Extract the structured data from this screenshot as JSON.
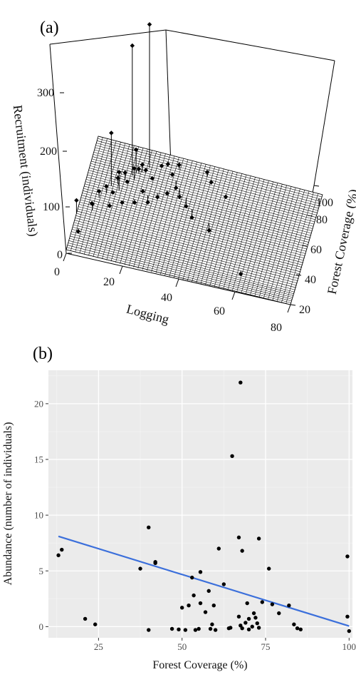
{
  "figure": {
    "panel_a_label": "(a)",
    "panel_b_label": "(b)"
  },
  "chart_data": [
    {
      "type": "scatter",
      "variant": "3d-scatter-with-regression-plane",
      "title": "",
      "xlabel": "Logging",
      "ylabel": "Forest Coverage (%)",
      "zlabel": "Recruitment (individuals)",
      "x_ticks": [
        "0",
        "20",
        "40",
        "60",
        "80"
      ],
      "y_ticks": [
        "20",
        "40",
        "60",
        "80",
        "100"
      ],
      "z_ticks": [
        "0",
        "100",
        "200",
        "300"
      ],
      "xlim": [
        0,
        80
      ],
      "ylim": [
        10,
        110
      ],
      "zlim": [
        0,
        360
      ],
      "plane": {
        "style": "wireframe",
        "gridlines": 50
      },
      "points": [
        {
          "logging": 0,
          "coverage": 42,
          "recruitment": 55
        },
        {
          "logging": 2,
          "coverage": 30,
          "recruitment": 12
        },
        {
          "logging": 4,
          "coverage": 55,
          "recruitment": 28
        },
        {
          "logging": 5,
          "coverage": 48,
          "recruitment": 42
        },
        {
          "logging": 6,
          "coverage": 60,
          "recruitment": 48
        },
        {
          "logging": 8,
          "coverage": 65,
          "recruitment": 52
        },
        {
          "logging": 9,
          "coverage": 72,
          "recruitment": 160
        },
        {
          "logging": 10,
          "coverage": 68,
          "recruitment": 35
        },
        {
          "logging": 11,
          "coverage": 75,
          "recruitment": 55
        },
        {
          "logging": 12,
          "coverage": 70,
          "recruitment": 80
        },
        {
          "logging": 13,
          "coverage": 80,
          "recruitment": 60
        },
        {
          "logging": 14,
          "coverage": 78,
          "recruitment": 45
        },
        {
          "logging": 15,
          "coverage": 85,
          "recruitment": 340
        },
        {
          "logging": 16,
          "coverage": 82,
          "recruitment": 70
        },
        {
          "logging": 17,
          "coverage": 88,
          "recruitment": 58
        },
        {
          "logging": 18,
          "coverage": 90,
          "recruitment": 65
        },
        {
          "logging": 19,
          "coverage": 92,
          "recruitment": 50
        },
        {
          "logging": 20,
          "coverage": 95,
          "recruitment": 375
        },
        {
          "logging": 20,
          "coverage": 74,
          "recruitment": 40
        },
        {
          "logging": 22,
          "coverage": 86,
          "recruitment": 48
        },
        {
          "logging": 24,
          "coverage": 98,
          "recruitment": 55
        },
        {
          "logging": 26,
          "coverage": 100,
          "recruitment": 58
        },
        {
          "logging": 28,
          "coverage": 96,
          "recruitment": 45
        },
        {
          "logging": 30,
          "coverage": 90,
          "recruitment": 30
        },
        {
          "logging": 32,
          "coverage": 84,
          "recruitment": 25
        },
        {
          "logging": 35,
          "coverage": 78,
          "recruitment": 20
        },
        {
          "logging": 38,
          "coverage": 70,
          "recruitment": 15
        },
        {
          "logging": 40,
          "coverage": 100,
          "recruitment": 60
        },
        {
          "logging": 42,
          "coverage": 95,
          "recruitment": 50
        },
        {
          "logging": 45,
          "coverage": 62,
          "recruitment": 12
        },
        {
          "logging": 48,
          "coverage": 88,
          "recruitment": 40
        },
        {
          "logging": 10,
          "coverage": 58,
          "recruitment": 25
        },
        {
          "logging": 14,
          "coverage": 62,
          "recruitment": 30
        },
        {
          "logging": 18,
          "coverage": 66,
          "recruitment": 28
        },
        {
          "logging": 22,
          "coverage": 72,
          "recruitment": 22
        },
        {
          "logging": 25,
          "coverage": 76,
          "recruitment": 30
        },
        {
          "logging": 28,
          "coverage": 80,
          "recruitment": 35
        },
        {
          "logging": 60,
          "coverage": 30,
          "recruitment": 0
        },
        {
          "logging": 16,
          "coverage": 88,
          "recruitment": 100
        },
        {
          "logging": 30,
          "coverage": 100,
          "recruitment": 62
        }
      ]
    },
    {
      "type": "scatter",
      "title": "",
      "xlabel": "Forest Coverage (%)",
      "ylabel": "Abundance (number of individuals)",
      "xlim": [
        10,
        101
      ],
      "ylim": [
        -1,
        23
      ],
      "x_ticks": [
        25,
        50,
        75,
        100
      ],
      "y_ticks": [
        0,
        5,
        10,
        15,
        20
      ],
      "grid": true,
      "background": "#ebebeb",
      "point_color": "#000000",
      "trend_color": "#3b6fdb",
      "trend_line": {
        "x": [
          13,
          100
        ],
        "y": [
          8.1,
          0.05
        ]
      },
      "points": [
        {
          "x": 13,
          "y": 6.4
        },
        {
          "x": 14,
          "y": 6.9
        },
        {
          "x": 21,
          "y": 0.7
        },
        {
          "x": 24,
          "y": 0.2
        },
        {
          "x": 37.5,
          "y": 5.2
        },
        {
          "x": 40,
          "y": 8.9
        },
        {
          "x": 40,
          "y": -0.3
        },
        {
          "x": 42,
          "y": 5.8
        },
        {
          "x": 42,
          "y": 5.7
        },
        {
          "x": 47,
          "y": -0.2
        },
        {
          "x": 49,
          "y": -0.25
        },
        {
          "x": 50,
          "y": 1.7
        },
        {
          "x": 51,
          "y": -0.3
        },
        {
          "x": 52,
          "y": 1.9
        },
        {
          "x": 53,
          "y": 4.4
        },
        {
          "x": 53.5,
          "y": 2.8
        },
        {
          "x": 54,
          "y": -0.3
        },
        {
          "x": 55,
          "y": -0.2
        },
        {
          "x": 55.5,
          "y": 4.9
        },
        {
          "x": 55.5,
          "y": 2.1
        },
        {
          "x": 57,
          "y": 1.3
        },
        {
          "x": 58,
          "y": 3.2
        },
        {
          "x": 58.5,
          "y": -0.2
        },
        {
          "x": 59,
          "y": 0.2
        },
        {
          "x": 59.5,
          "y": 1.9
        },
        {
          "x": 60,
          "y": -0.3
        },
        {
          "x": 61,
          "y": 7.0
        },
        {
          "x": 62.5,
          "y": 3.8
        },
        {
          "x": 64,
          "y": -0.15
        },
        {
          "x": 64.5,
          "y": -0.1
        },
        {
          "x": 65,
          "y": 15.3
        },
        {
          "x": 67,
          "y": 8.0
        },
        {
          "x": 67.5,
          "y": 21.9
        },
        {
          "x": 67,
          "y": 0.9
        },
        {
          "x": 67.5,
          "y": 0.1
        },
        {
          "x": 68,
          "y": 6.8
        },
        {
          "x": 68,
          "y": -0.15
        },
        {
          "x": 69,
          "y": 0.35
        },
        {
          "x": 69.5,
          "y": 2.1
        },
        {
          "x": 70,
          "y": 0.7
        },
        {
          "x": 70,
          "y": -0.25
        },
        {
          "x": 71,
          "y": 0.0
        },
        {
          "x": 71.5,
          "y": 1.2
        },
        {
          "x": 72,
          "y": 0.8
        },
        {
          "x": 72.5,
          "y": 0.3
        },
        {
          "x": 73,
          "y": 7.9
        },
        {
          "x": 73,
          "y": -0.1
        },
        {
          "x": 74,
          "y": 2.2
        },
        {
          "x": 76,
          "y": 5.2
        },
        {
          "x": 77,
          "y": 2.0
        },
        {
          "x": 79,
          "y": 1.2
        },
        {
          "x": 82,
          "y": 1.9
        },
        {
          "x": 83.5,
          "y": 0.2
        },
        {
          "x": 84.5,
          "y": -0.15
        },
        {
          "x": 85.5,
          "y": -0.25
        },
        {
          "x": 99.5,
          "y": 6.3
        },
        {
          "x": 99.5,
          "y": 0.9
        },
        {
          "x": 100,
          "y": -0.4
        }
      ]
    }
  ]
}
